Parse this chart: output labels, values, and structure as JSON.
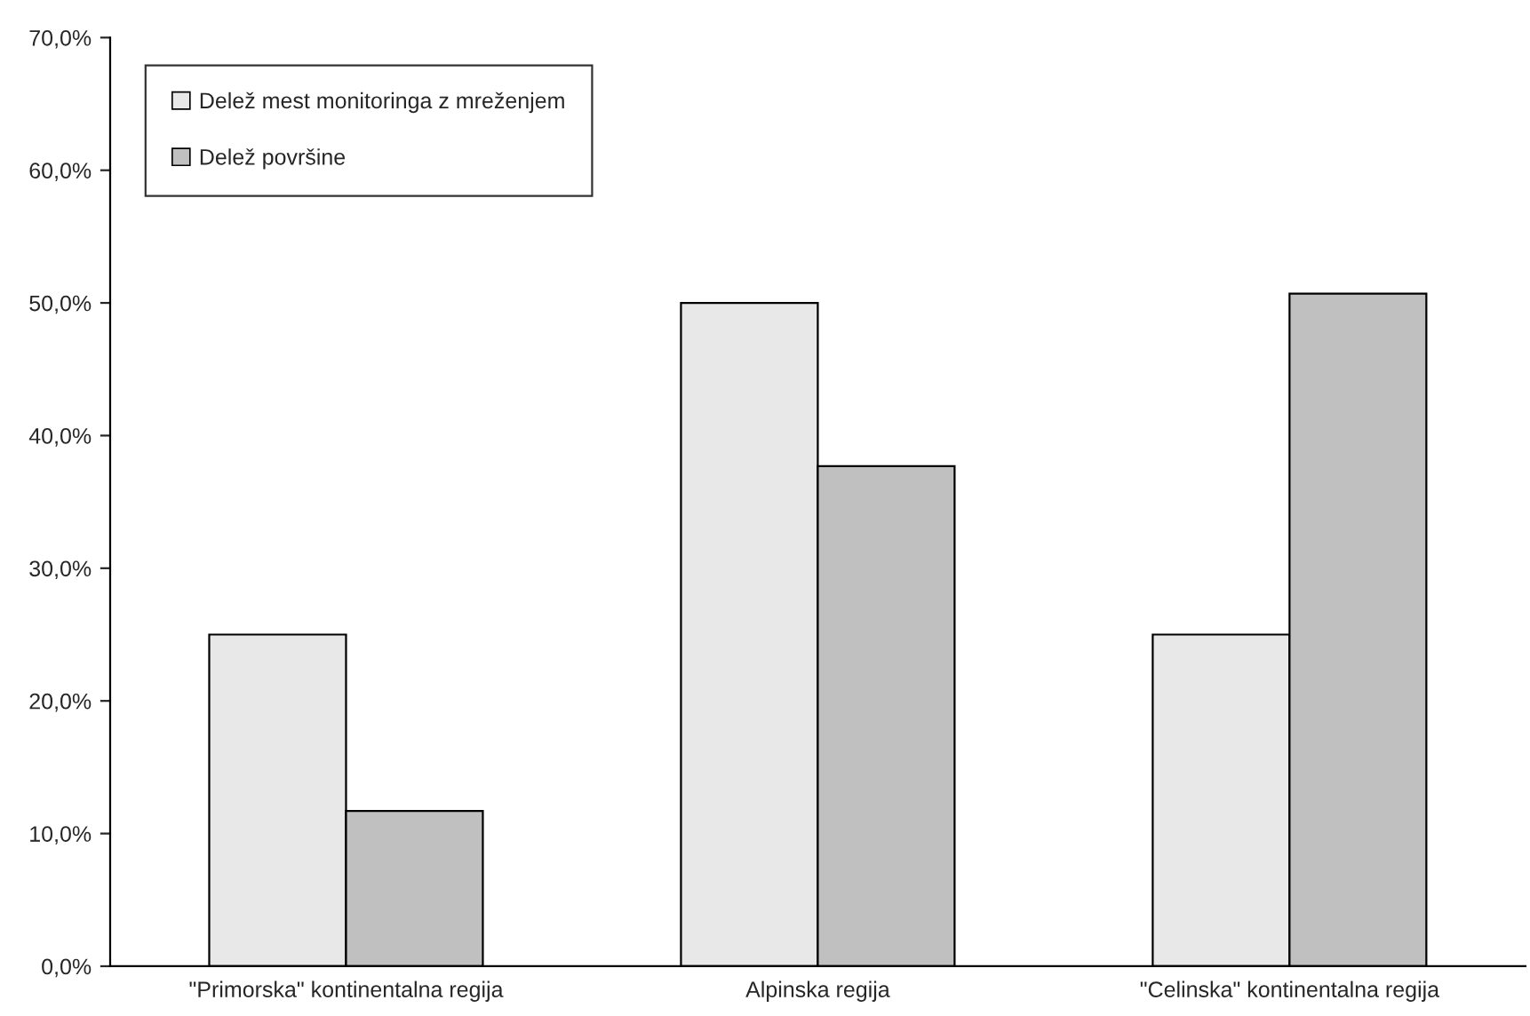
{
  "chart_data": {
    "type": "bar",
    "categories": [
      "\"Primorska\" kontinentalna regija",
      "Alpinska regija",
      "\"Celinska\" kontinentalna regija"
    ],
    "series": [
      {
        "name": "Delež mest monitoringa z mreženjem",
        "color": "#e8e8e8",
        "values": [
          25.0,
          50.0,
          25.0
        ]
      },
      {
        "name": "Delež površine",
        "color": "#c0c0c0",
        "values": [
          11.7,
          37.7,
          50.7
        ]
      }
    ],
    "ylim": [
      0,
      70
    ],
    "yticks": [
      {
        "value": 0,
        "label": "0,0%"
      },
      {
        "value": 10,
        "label": "10,0%"
      },
      {
        "value": 20,
        "label": "20,0%"
      },
      {
        "value": 30,
        "label": "30,0%"
      },
      {
        "value": 40,
        "label": "40,0%"
      },
      {
        "value": 50,
        "label": "50,0%"
      },
      {
        "value": 60,
        "label": "60,0%"
      },
      {
        "value": 70,
        "label": "70,0%"
      }
    ],
    "grid": false,
    "legend": "top left"
  }
}
